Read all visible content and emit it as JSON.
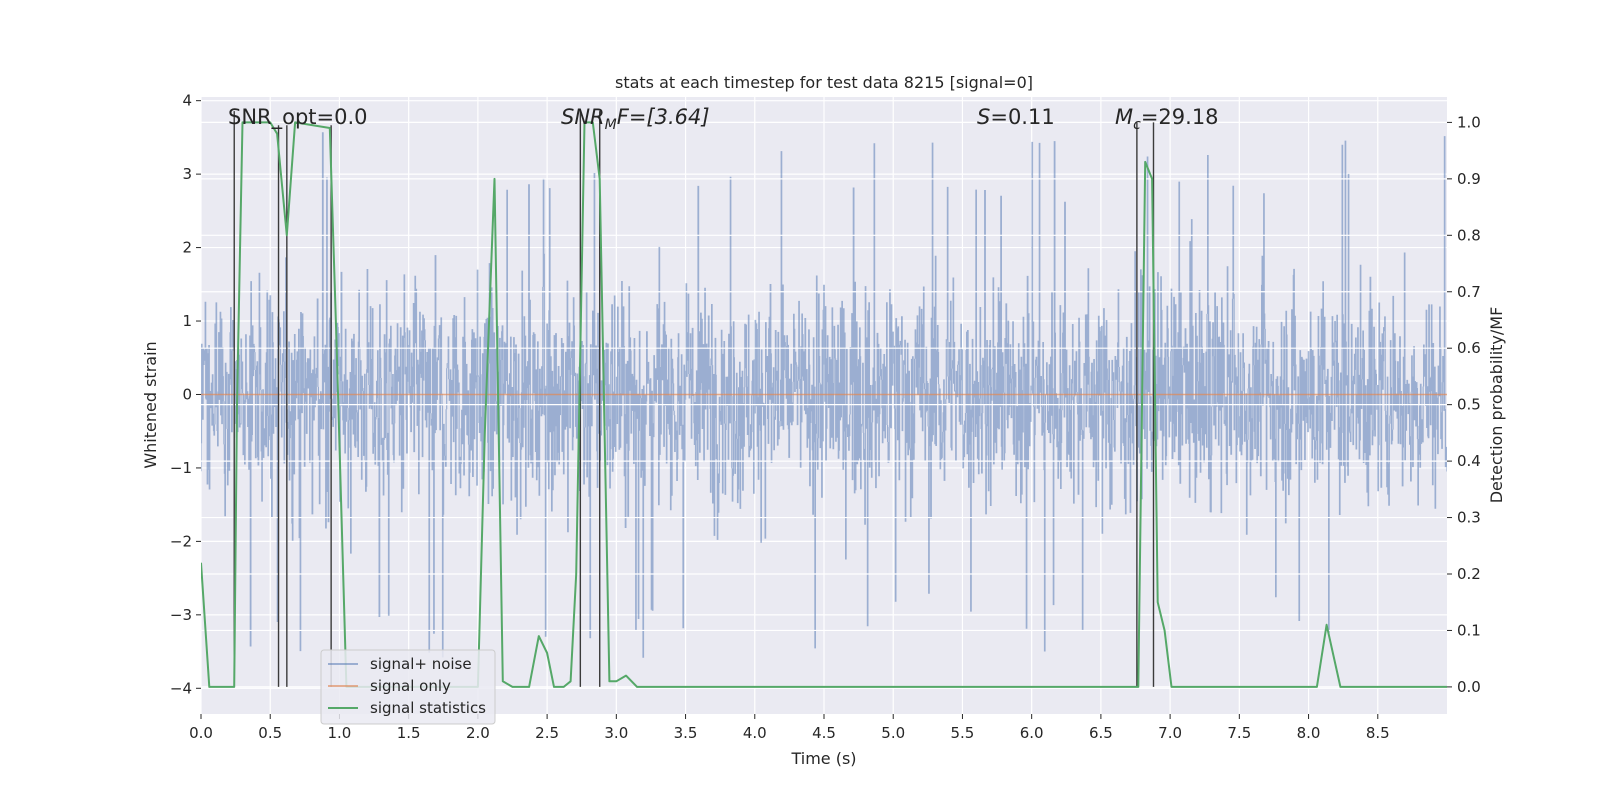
{
  "chart_data": {
    "type": "line",
    "title": "stats at each timestep for test data 8215 [signal=0]",
    "xlabel": "Time (s)",
    "ylabel_left": "Whitened strain",
    "ylabel_right": "Detection probability/MF",
    "xlim": [
      0.0,
      9.0
    ],
    "ylim_left": [
      -4.35,
      4.05
    ],
    "ylim_right": [
      -0.048,
      1.045
    ],
    "x_ticks": [
      "0.0",
      "0.5",
      "1.0",
      "1.5",
      "2.0",
      "2.5",
      "3.0",
      "3.5",
      "4.0",
      "4.5",
      "5.0",
      "5.5",
      "6.0",
      "6.5",
      "7.0",
      "7.5",
      "8.0",
      "8.5"
    ],
    "y_ticks_left": [
      "4",
      "3",
      "2",
      "1",
      "0",
      "−1",
      "−2",
      "−3",
      "−4"
    ],
    "y_ticks_right": [
      "1.0",
      "0.9",
      "0.8",
      "0.7",
      "0.6",
      "0.5",
      "0.4",
      "0.3",
      "0.2",
      "0.1",
      "0.0"
    ],
    "grid": true,
    "legend_location": "lower-left",
    "annotations": {
      "snr_opt": "SNR_opt=0.0",
      "snr_mf_base": "SNR",
      "snr_mf_sub": "M",
      "snr_mf_rest": "F=[3.64]",
      "s_var": "S",
      "s_rest": "=0.11",
      "mc_base": "M",
      "mc_sub": "c",
      "mc_rest": "=29.18"
    },
    "series": [
      {
        "name": "signal+ noise",
        "color": "#4c72b0",
        "description": "whitened noise, approx Gaussian, sigma ~1, peaks to about +/-3.6",
        "x_range": [
          0.0,
          9.0
        ]
      },
      {
        "name": "signal only",
        "color": "#dd8452",
        "x": [
          0.0,
          9.0
        ],
        "y": [
          0.0,
          0.0
        ]
      },
      {
        "name": "signal statistics",
        "color": "#55a868",
        "x": [
          0.0,
          0.06,
          0.18,
          0.24,
          0.26,
          0.3,
          0.4,
          0.5,
          0.55,
          0.62,
          0.68,
          0.93,
          0.98,
          1.05,
          1.1,
          2.0,
          2.05,
          2.12,
          2.18,
          2.25,
          2.37,
          2.44,
          2.5,
          2.55,
          2.62,
          2.67,
          2.71,
          2.77,
          2.83,
          2.88,
          2.95,
          3.0,
          3.07,
          3.15,
          3.27,
          6.68,
          6.73,
          6.77,
          6.82,
          6.87,
          6.91,
          6.96,
          7.01,
          7.07,
          8.06,
          8.13,
          8.23,
          9.0
        ],
        "y": [
          0.22,
          0.0,
          0.0,
          0.0,
          0.5,
          1.0,
          1.0,
          1.0,
          0.98,
          0.8,
          1.0,
          0.99,
          0.6,
          0.0,
          0.0,
          0.0,
          0.45,
          0.9,
          0.01,
          0.0,
          0.0,
          0.09,
          0.06,
          0.0,
          0.0,
          0.01,
          0.2,
          1.0,
          1.0,
          0.9,
          0.01,
          0.01,
          0.02,
          0.0,
          0.0,
          0.0,
          0.0,
          0.0,
          0.93,
          0.9,
          0.15,
          0.1,
          0.0,
          0.0,
          0.0,
          0.11,
          0.0,
          0.0
        ]
      }
    ],
    "vlines": [
      {
        "x": 0.24,
        "ymin": 0.0,
        "ymax": 1.02
      },
      {
        "x": 0.56,
        "ymin": 0.0,
        "ymax": 0.995
      },
      {
        "x": 0.62,
        "ymin": 0.0,
        "ymax": 0.995
      },
      {
        "x": 0.94,
        "ymin": 0.0,
        "ymax": 0.995
      },
      {
        "x": 2.74,
        "ymin": 0.0,
        "ymax": 1.02
      },
      {
        "x": 2.88,
        "ymin": 0.0,
        "ymax": 1.02
      },
      {
        "x": 6.76,
        "ymin": 0.0,
        "ymax": 1.0
      },
      {
        "x": 6.88,
        "ymin": 0.0,
        "ymax": 1.0
      }
    ]
  }
}
